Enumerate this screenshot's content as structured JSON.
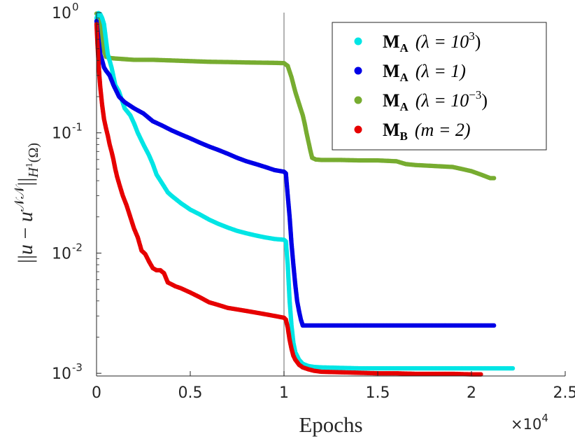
{
  "chart_data": {
    "type": "scatter",
    "yscale": "log",
    "xlim": [
      0,
      25000
    ],
    "ylim": [
      0.00095,
      1.0
    ],
    "xticks": [
      0,
      5000,
      10000,
      15000,
      20000,
      25000
    ],
    "xtick_labels": [
      "0",
      "0.5",
      "1",
      "1.5",
      "2",
      "2.5"
    ],
    "ytick_labels": [
      {
        "base": "10",
        "exp": "0"
      },
      {
        "base": "10",
        "exp": "-1"
      },
      {
        "base": "10",
        "exp": "-2"
      },
      {
        "base": "10",
        "exp": "-3"
      }
    ],
    "xlabel": "Epochs",
    "x_multiplier": {
      "base": "×10",
      "exp": "4"
    },
    "ylabel": "||u − u^NN||_{H¹(Ω)}",
    "vline_x": 10000,
    "legend_position": "top-right",
    "series": [
      {
        "name": "M_A (λ = 10³)",
        "legend": {
          "M": "M",
          "sub": "A",
          "param_pre": "(λ = 10",
          "param_sup": "3",
          "param_post": ")"
        },
        "color": "#00e5e5",
        "x": [
          0,
          100,
          200,
          300,
          400,
          500,
          600,
          800,
          1000,
          1200,
          1500,
          1800,
          2000,
          2200,
          2500,
          2800,
          3000,
          3200,
          3500,
          3800,
          4000,
          4500,
          5000,
          5500,
          6000,
          6500,
          7000,
          7500,
          8000,
          8500,
          9000,
          9500,
          10000,
          10100,
          10200,
          10300,
          10400,
          10500,
          10600,
          10800,
          11000,
          11300,
          11600,
          12000,
          13000,
          14000,
          15000,
          16000,
          17000,
          18000,
          19000,
          20000,
          21000,
          22000,
          22200
        ],
        "y": [
          0.9,
          0.99,
          0.97,
          0.9,
          0.8,
          0.6,
          0.45,
          0.35,
          0.25,
          0.22,
          0.16,
          0.14,
          0.12,
          0.1,
          0.08,
          0.065,
          0.055,
          0.045,
          0.038,
          0.032,
          0.03,
          0.026,
          0.023,
          0.021,
          0.019,
          0.0175,
          0.0163,
          0.0153,
          0.0146,
          0.014,
          0.0135,
          0.0131,
          0.0129,
          0.0125,
          0.008,
          0.004,
          0.0025,
          0.0018,
          0.0015,
          0.0013,
          0.0012,
          0.00115,
          0.00113,
          0.00112,
          0.00111,
          0.0011,
          0.0011,
          0.0011,
          0.0011,
          0.0011,
          0.0011,
          0.0011,
          0.0011,
          0.0011,
          0.0011
        ]
      },
      {
        "name": "M_A (λ = 1)",
        "legend": {
          "M": "M",
          "sub": "A",
          "param_pre": "(λ = 1)",
          "param_sup": "",
          "param_post": ""
        },
        "color": "#0000e6",
        "x": [
          0,
          100,
          200,
          300,
          400,
          500,
          700,
          900,
          1200,
          1500,
          2000,
          2500,
          3000,
          3500,
          4000,
          4500,
          5000,
          5500,
          6000,
          6500,
          7000,
          7500,
          8000,
          8500,
          9000,
          9500,
          10000,
          10100,
          10200,
          10300,
          10400,
          10500,
          10600,
          10700,
          10800,
          10900,
          11000,
          11200,
          12000,
          13000,
          14000,
          15000,
          16000,
          17000,
          18000,
          19000,
          20000,
          21000,
          21200
        ],
        "y": [
          0.85,
          0.6,
          0.45,
          0.4,
          0.35,
          0.33,
          0.3,
          0.25,
          0.2,
          0.18,
          0.16,
          0.145,
          0.125,
          0.115,
          0.105,
          0.097,
          0.09,
          0.083,
          0.077,
          0.072,
          0.067,
          0.062,
          0.058,
          0.055,
          0.052,
          0.049,
          0.0475,
          0.046,
          0.03,
          0.02,
          0.012,
          0.008,
          0.0055,
          0.004,
          0.0033,
          0.0028,
          0.0025,
          0.0025,
          0.0025,
          0.0025,
          0.0025,
          0.0025,
          0.0025,
          0.0025,
          0.0025,
          0.0025,
          0.0025,
          0.0025,
          0.0025
        ]
      },
      {
        "name": "M_A (λ = 10⁻³)",
        "legend": {
          "M": "M",
          "sub": "A",
          "param_pre": "(λ = 10",
          "param_sup": "−3",
          "param_post": ")"
        },
        "color": "#77ac30",
        "x": [
          0,
          100,
          200,
          300,
          400,
          500,
          700,
          1000,
          1500,
          2000,
          3000,
          4000,
          5000,
          6000,
          7000,
          8000,
          9000,
          9500,
          10000,
          10200,
          10400,
          10600,
          10800,
          11000,
          11100,
          11200,
          11300,
          11400,
          11500,
          11700,
          12000,
          13000,
          14000,
          15000,
          16000,
          16500,
          17000,
          18000,
          19000,
          19500,
          20000,
          20500,
          21000,
          21200
        ],
        "y": [
          0.98,
          0.95,
          0.85,
          0.6,
          0.48,
          0.43,
          0.42,
          0.415,
          0.41,
          0.405,
          0.405,
          0.4,
          0.395,
          0.39,
          0.388,
          0.385,
          0.383,
          0.382,
          0.38,
          0.36,
          0.29,
          0.22,
          0.175,
          0.14,
          0.12,
          0.1,
          0.085,
          0.072,
          0.062,
          0.06,
          0.0595,
          0.0595,
          0.059,
          0.059,
          0.058,
          0.055,
          0.054,
          0.053,
          0.052,
          0.05,
          0.048,
          0.045,
          0.042,
          0.042
        ]
      },
      {
        "name": "M_B (m = 2)",
        "legend": {
          "M": "M",
          "sub": "B",
          "param_pre": "(m = 2)",
          "param_sup": "",
          "param_post": ""
        },
        "color": "#e60000",
        "x": [
          0,
          50,
          100,
          150,
          200,
          300,
          400,
          500,
          600,
          700,
          800,
          900,
          1000,
          1100,
          1200,
          1400,
          1600,
          1800,
          2000,
          2200,
          2400,
          2600,
          2800,
          3000,
          3200,
          3400,
          3600,
          3800,
          4000,
          4200,
          4500,
          5000,
          5500,
          6000,
          6500,
          7000,
          7500,
          8000,
          8500,
          9000,
          9500,
          10000,
          10100,
          10200,
          10300,
          10400,
          10500,
          10600,
          10800,
          11000,
          11300,
          11600,
          12000,
          13000,
          14000,
          15000,
          16000,
          17000,
          18000,
          19000,
          20000,
          20500
        ],
        "y": [
          0.8,
          0.55,
          0.4,
          0.3,
          0.24,
          0.17,
          0.13,
          0.11,
          0.095,
          0.08,
          0.07,
          0.06,
          0.05,
          0.043,
          0.038,
          0.03,
          0.025,
          0.02,
          0.016,
          0.0135,
          0.0105,
          0.0098,
          0.0085,
          0.0075,
          0.0072,
          0.0072,
          0.0068,
          0.0057,
          0.0055,
          0.0053,
          0.0051,
          0.0047,
          0.0043,
          0.0039,
          0.0037,
          0.0035,
          0.0034,
          0.0033,
          0.0032,
          0.0031,
          0.003,
          0.0029,
          0.0028,
          0.0024,
          0.0019,
          0.0016,
          0.0014,
          0.0013,
          0.00118,
          0.00112,
          0.00108,
          0.00105,
          0.00103,
          0.00102,
          0.00101,
          0.001,
          0.001,
          0.00099,
          0.00099,
          0.00099,
          0.00098,
          0.00098
        ]
      }
    ]
  }
}
